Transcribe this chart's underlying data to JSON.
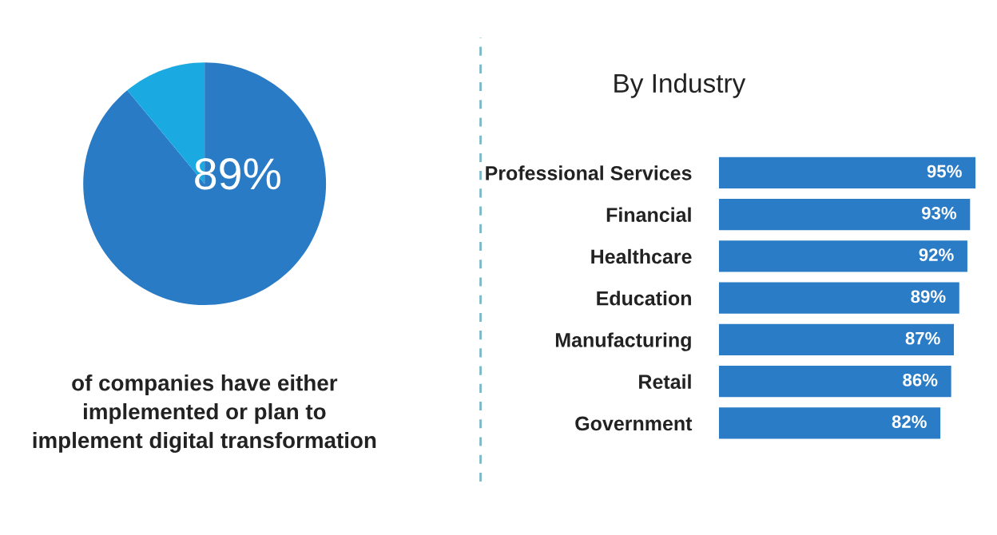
{
  "chart_data": [
    {
      "type": "pie",
      "categories": [
        null,
        null
      ],
      "values": [
        89,
        11
      ],
      "colors": [
        "#2a7bc6",
        "#1ba9e1"
      ],
      "value_labels": [
        "89%",
        null
      ],
      "annotations": [
        "of companies have either\nimplemented or plan to\nimplement digital transformation"
      ]
    },
    {
      "type": "bar",
      "orientation": "horizontal",
      "title": "By Industry",
      "categories": [
        "Professional Services",
        "Financial",
        "Healthcare",
        "Education",
        "Manufacturing",
        "Retail",
        "Government"
      ],
      "values": [
        95,
        93,
        92,
        89,
        87,
        86,
        82
      ],
      "color": "#2b7cc6",
      "value_labels": [
        "95%",
        "93%",
        "92%",
        "89%",
        "87%",
        "86%",
        "82%"
      ],
      "tick_labels": "y",
      "grid": false,
      "legend": false
    }
  ]
}
